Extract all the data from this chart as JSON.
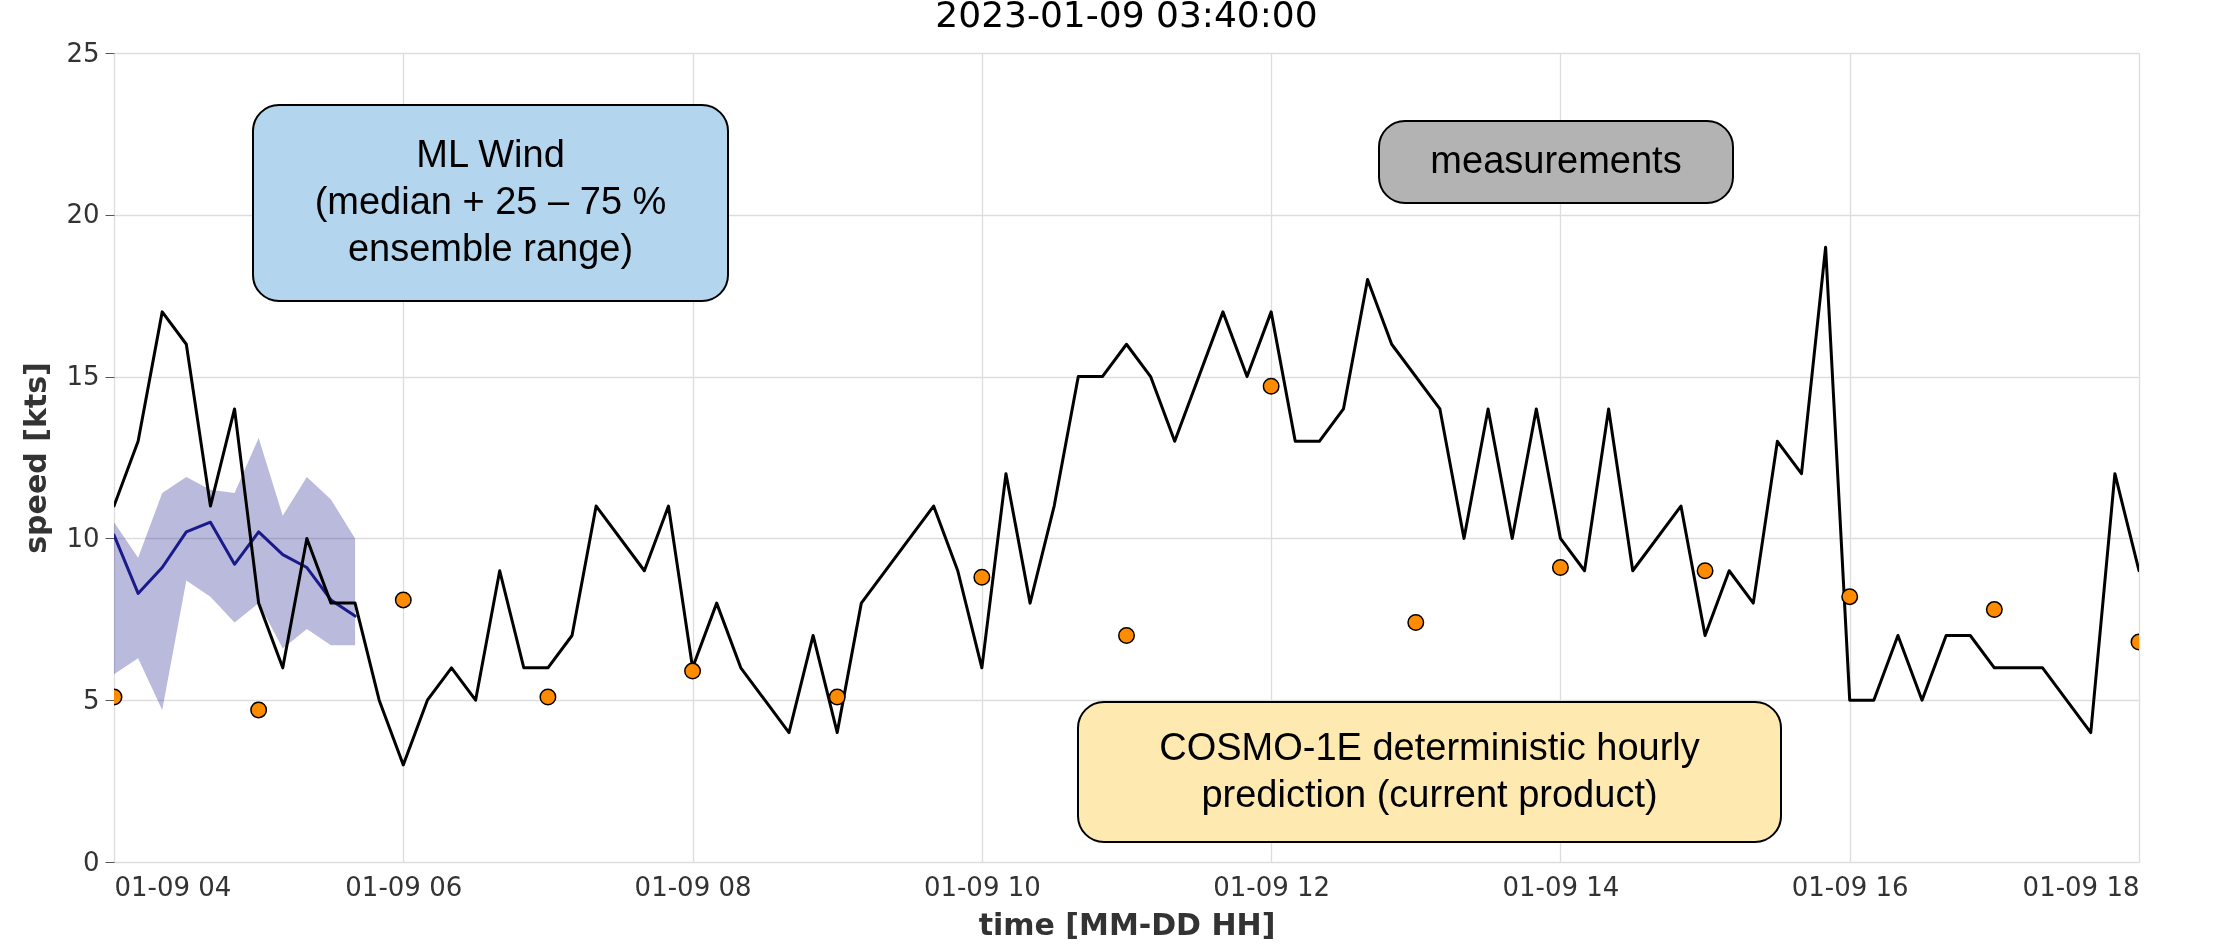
{
  "chart_data": {
    "type": "line",
    "title": "2023-01-09 03:40:00",
    "xlabel": "time [MM-DD HH]",
    "ylabel": "speed [kts]",
    "xlim": [
      "2023-01-09T04:00",
      "2023-01-09T18:00"
    ],
    "xticks": [
      {
        "value": "2023-01-09T04:00",
        "label": "01-09 04"
      },
      {
        "value": "2023-01-09T06:00",
        "label": "01-09 06"
      },
      {
        "value": "2023-01-09T08:00",
        "label": "01-09 08"
      },
      {
        "value": "2023-01-09T10:00",
        "label": "01-09 10"
      },
      {
        "value": "2023-01-09T12:00",
        "label": "01-09 12"
      },
      {
        "value": "2023-01-09T14:00",
        "label": "01-09 14"
      },
      {
        "value": "2023-01-09T16:00",
        "label": "01-09 16"
      },
      {
        "value": "2023-01-09T18:00",
        "label": "01-09 18"
      }
    ],
    "ylim": [
      0,
      25
    ],
    "yticks": [
      0,
      5,
      10,
      15,
      20,
      25
    ],
    "grid": true,
    "annotations": [
      "ML Wind\n(median + 25 – 75 %\nensemble range)",
      "measurements",
      "COSMO-1E deterministic hourly\nprediction (current product)"
    ],
    "series": [
      {
        "color": "#1a1a8a",
        "x": [
          "2023-01-09T04:00",
          "2023-01-09T04:10",
          "2023-01-09T04:20",
          "2023-01-09T04:30",
          "2023-01-09T04:40",
          "2023-01-09T04:50",
          "2023-01-09T05:00",
          "2023-01-09T05:10",
          "2023-01-09T05:20",
          "2023-01-09T05:30",
          "2023-01-09T05:40"
        ],
        "values": [
          10.1,
          8.3,
          9.1,
          10.2,
          10.5,
          9.2,
          10.2,
          9.5,
          9.1,
          8.1,
          7.6
        ],
        "lower": [
          5.8,
          6.3,
          4.7,
          8.7,
          8.2,
          7.4,
          8.0,
          6.6,
          7.2,
          6.7,
          6.7
        ],
        "upper": [
          10.5,
          9.4,
          11.4,
          11.9,
          11.5,
          11.4,
          13.1,
          10.7,
          11.9,
          11.2,
          10.0
        ]
      },
      {
        "color": "#000000",
        "x": [
          "2023-01-09T04:00",
          "2023-01-09T04:10",
          "2023-01-09T04:20",
          "2023-01-09T04:30",
          "2023-01-09T04:40",
          "2023-01-09T04:50",
          "2023-01-09T05:00",
          "2023-01-09T05:10",
          "2023-01-09T05:20",
          "2023-01-09T05:30",
          "2023-01-09T05:40",
          "2023-01-09T05:50",
          "2023-01-09T06:00",
          "2023-01-09T06:10",
          "2023-01-09T06:20",
          "2023-01-09T06:30",
          "2023-01-09T06:40",
          "2023-01-09T06:50",
          "2023-01-09T07:00",
          "2023-01-09T07:10",
          "2023-01-09T07:20",
          "2023-01-09T07:40",
          "2023-01-09T07:50",
          "2023-01-09T08:00",
          "2023-01-09T08:10",
          "2023-01-09T08:20",
          "2023-01-09T08:40",
          "2023-01-09T08:50",
          "2023-01-09T09:00",
          "2023-01-09T09:10",
          "2023-01-09T09:40",
          "2023-01-09T09:50",
          "2023-01-09T10:00",
          "2023-01-09T10:10",
          "2023-01-09T10:20",
          "2023-01-09T10:30",
          "2023-01-09T10:40",
          "2023-01-09T10:50",
          "2023-01-09T11:00",
          "2023-01-09T11:10",
          "2023-01-09T11:20",
          "2023-01-09T11:40",
          "2023-01-09T11:50",
          "2023-01-09T12:00",
          "2023-01-09T12:10",
          "2023-01-09T12:20",
          "2023-01-09T12:30",
          "2023-01-09T12:40",
          "2023-01-09T12:50",
          "2023-01-09T13:10",
          "2023-01-09T13:20",
          "2023-01-09T13:30",
          "2023-01-09T13:40",
          "2023-01-09T13:50",
          "2023-01-09T14:00",
          "2023-01-09T14:10",
          "2023-01-09T14:20",
          "2023-01-09T14:30",
          "2023-01-09T14:50",
          "2023-01-09T15:00",
          "2023-01-09T15:10",
          "2023-01-09T15:20",
          "2023-01-09T15:30",
          "2023-01-09T15:40",
          "2023-01-09T15:50",
          "2023-01-09T16:00",
          "2023-01-09T16:10",
          "2023-01-09T16:20",
          "2023-01-09T16:30",
          "2023-01-09T16:40",
          "2023-01-09T16:50",
          "2023-01-09T17:00",
          "2023-01-09T17:20",
          "2023-01-09T17:40",
          "2023-01-09T17:50",
          "2023-01-09T18:00"
        ],
        "values": [
          11,
          13,
          17,
          16,
          11,
          14,
          8,
          6,
          10,
          8,
          8,
          5,
          3,
          5,
          6,
          5,
          9,
          6,
          6,
          7,
          11,
          9,
          11,
          6,
          8,
          6,
          4,
          7,
          4,
          8,
          11,
          9,
          6,
          12,
          8,
          11,
          15,
          15,
          16,
          15,
          13,
          17,
          15,
          17,
          13,
          13,
          14,
          18,
          16,
          14,
          10,
          14,
          10,
          14,
          10,
          9,
          14,
          9,
          11,
          7,
          9,
          8,
          13,
          12,
          19,
          5,
          5,
          7,
          5,
          7,
          7,
          6,
          6,
          4,
          12,
          9
        ]
      },
      {
        "type": "scatter",
        "color": "#ff8c00",
        "marker": "circle",
        "x": [
          "2023-01-09T04:00",
          "2023-01-09T05:00",
          "2023-01-09T06:00",
          "2023-01-09T07:00",
          "2023-01-09T08:00",
          "2023-01-09T09:00",
          "2023-01-09T10:00",
          "2023-01-09T11:00",
          "2023-01-09T12:00",
          "2023-01-09T13:00",
          "2023-01-09T14:00",
          "2023-01-09T15:00",
          "2023-01-09T16:00",
          "2023-01-09T17:00",
          "2023-01-09T18:00"
        ],
        "values": [
          5.1,
          4.7,
          8.1,
          5.1,
          5.9,
          5.1,
          8.8,
          7.0,
          14.7,
          7.4,
          9.1,
          9.0,
          8.2,
          7.8,
          6.8
        ]
      }
    ]
  }
}
